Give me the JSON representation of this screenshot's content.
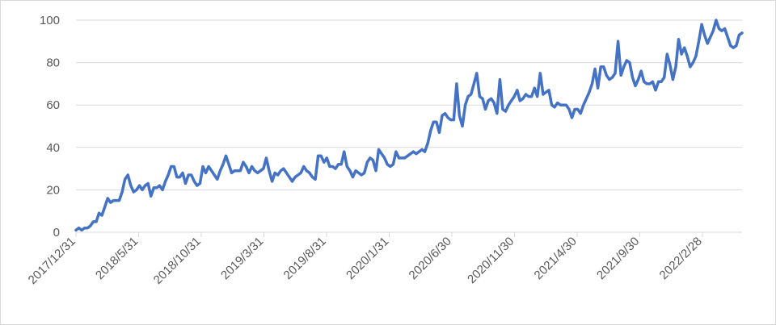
{
  "chart_data": {
    "type": "line",
    "title": "",
    "xlabel": "",
    "ylabel": "",
    "ylim": [
      0,
      100
    ],
    "y_ticks": [
      "0",
      "20",
      "40",
      "60",
      "80",
      "100"
    ],
    "x_tick_labels": [
      "2017/12/31",
      "2018/5/31",
      "2018/10/31",
      "2019/3/31",
      "2019/8/31",
      "2020/1/31",
      "2020/6/30",
      "2020/11/30",
      "2021/4/30",
      "2021/9/30",
      "2022/2/28"
    ],
    "grid": "horizontal",
    "legend": "none",
    "line_color": "#4472c4",
    "series": [
      {
        "values": [
          1,
          2,
          1,
          2,
          2,
          3,
          5,
          5,
          9,
          8,
          12,
          16,
          14,
          15,
          15,
          15,
          19,
          25,
          27,
          22,
          19,
          20,
          22,
          20,
          22,
          23,
          17,
          21,
          21,
          22,
          20,
          24,
          27,
          31,
          31,
          26,
          26,
          28,
          23,
          27,
          27,
          24,
          22,
          23,
          31,
          28,
          31,
          29,
          27,
          25,
          29,
          32,
          36,
          32,
          28,
          29,
          29,
          29,
          33,
          31,
          28,
          31,
          29,
          28,
          29,
          30,
          35,
          29,
          24,
          28,
          27,
          29,
          30,
          28,
          26,
          24,
          26,
          27,
          28,
          31,
          29,
          28,
          26,
          25,
          36,
          36,
          33,
          35,
          31,
          31,
          30,
          32,
          32,
          38,
          31,
          29,
          26,
          29,
          28,
          27,
          28,
          33,
          35,
          34,
          29,
          39,
          37,
          35,
          32,
          31,
          32,
          38,
          35,
          35,
          35,
          36,
          37,
          38,
          37,
          38,
          39,
          38,
          42,
          48,
          52,
          52,
          47,
          55,
          56,
          54,
          53,
          53,
          70,
          55,
          50,
          60,
          64,
          65,
          70,
          75,
          64,
          63,
          58,
          62,
          63,
          61,
          56,
          72,
          58,
          57,
          60,
          62,
          64,
          67,
          62,
          63,
          65,
          64,
          64,
          68,
          64,
          75,
          65,
          66,
          67,
          60,
          59,
          61,
          60,
          60,
          60,
          58,
          54,
          58,
          58,
          56,
          60,
          63,
          66,
          70,
          77,
          68,
          78,
          78,
          74,
          72,
          73,
          75,
          90,
          74,
          78,
          81,
          80,
          73,
          69,
          72,
          76,
          71,
          70,
          70,
          71,
          67,
          71,
          71,
          73,
          84,
          79,
          72,
          78,
          91,
          84,
          87,
          83,
          78,
          80,
          83,
          90,
          98,
          93,
          89,
          92,
          95,
          100,
          96,
          95,
          96,
          92,
          88,
          87,
          88,
          93,
          94
        ]
      }
    ]
  }
}
